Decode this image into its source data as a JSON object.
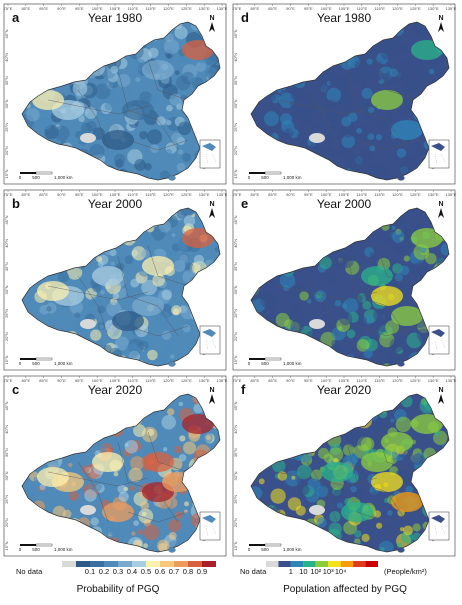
{
  "panels": [
    {
      "letter": "a",
      "title": "Year 1980",
      "kind": "prob",
      "level": 0
    },
    {
      "letter": "d",
      "title": "Year 1980",
      "kind": "pop",
      "level": 0
    },
    {
      "letter": "b",
      "title": "Year 2000",
      "kind": "prob",
      "level": 1
    },
    {
      "letter": "e",
      "title": "Year 2000",
      "kind": "pop",
      "level": 1
    },
    {
      "letter": "c",
      "title": "Year 2020",
      "kind": "prob",
      "level": 2
    },
    {
      "letter": "f",
      "title": "Year 2020",
      "kind": "pop",
      "level": 2
    }
  ],
  "axis": {
    "lon_ticks": [
      "75°E",
      "80°E",
      "85°E",
      "90°E",
      "95°E",
      "100°E",
      "105°E",
      "110°E",
      "115°E",
      "120°E",
      "125°E",
      "130°E",
      "135°E"
    ],
    "lat_ticks": [
      "45°N",
      "40°N",
      "35°N",
      "30°N",
      "25°N",
      "20°N",
      "15°N"
    ]
  },
  "scalebar": {
    "zero": "0",
    "mid": "500",
    "end": "1,000 km"
  },
  "north_label": "N",
  "legend_prob": {
    "title": "Probability of PGQ",
    "nodata": "No data",
    "labels": [
      "0.1",
      "0.2",
      "0.3",
      "0.4",
      "0.5",
      "0.6",
      "0.7",
      "0.8",
      "0.9"
    ],
    "colors": [
      "#d9d9d9",
      "#2c5a88",
      "#3a6f9f",
      "#4f8ab9",
      "#79a9cd",
      "#a9cde0",
      "#fdf0b0",
      "#f7c77a",
      "#ee9c5c",
      "#d9603d",
      "#a8212a"
    ]
  },
  "legend_pop": {
    "title": "Population affected by PGQ",
    "nodata": "No data",
    "labels": [
      "1",
      "10",
      "10²",
      "10³",
      "10⁴"
    ],
    "unit": "(People/km²)",
    "colors": [
      "#d9d9d9",
      "#39508a",
      "#2e86b8",
      "#2ab38a",
      "#8ccd3e",
      "#f5e01a",
      "#f59d0d",
      "#e03b1c",
      "#cc0000"
    ]
  },
  "map_colors": {
    "prob_base": "#4f8ab9",
    "pop_base": "#39508a",
    "nodata": "#d9d9d9",
    "sea": "#ffffff",
    "border": "#555555"
  }
}
